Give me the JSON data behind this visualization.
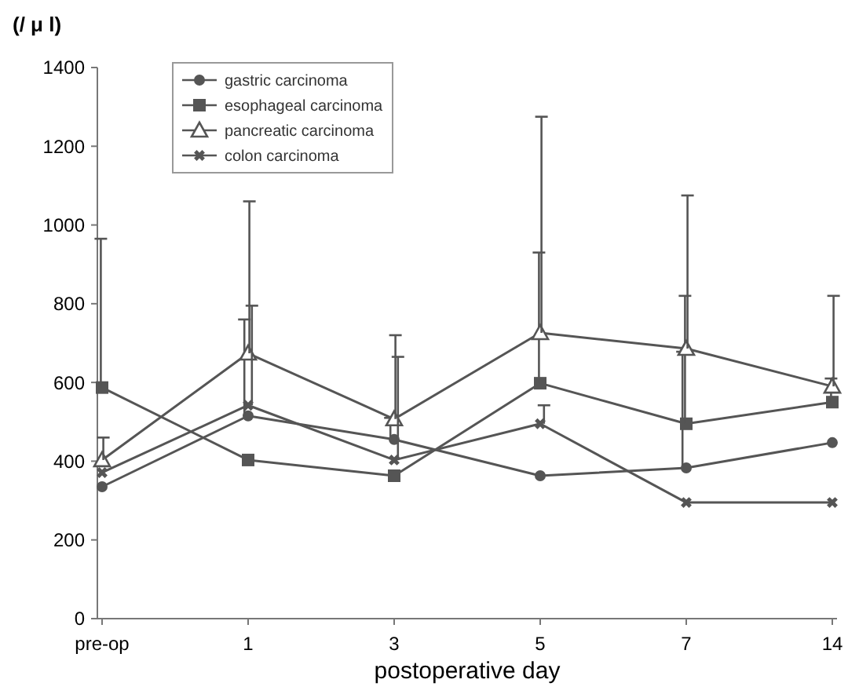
{
  "chart_data": {
    "type": "line",
    "ylabel": "(/ μ l)",
    "xlabel": "postoperative day",
    "categories": [
      "pre-op",
      "1",
      "3",
      "5",
      "7",
      "14"
    ],
    "ylim": [
      0,
      1400
    ],
    "yticks": [
      0,
      200,
      400,
      600,
      800,
      1000,
      1200,
      1400
    ],
    "grid": false,
    "legend": "top left",
    "line_style": "solid",
    "series": [
      {
        "name": "gastric carcinoma",
        "color": "#555555",
        "marker": "circle",
        "values": [
          335,
          515,
          455,
          363,
          383,
          447
        ],
        "errors": [
          null,
          [
            515,
            760
          ],
          [
            455,
            510
          ],
          null,
          [
            383,
            678
          ],
          null
        ]
      },
      {
        "name": "esophageal carcinoma",
        "color": "#555555",
        "marker": "square",
        "values": [
          587,
          403,
          363,
          598,
          495,
          550
        ],
        "errors": [
          [
            587,
            965
          ],
          null,
          null,
          [
            598,
            930
          ],
          [
            495,
            820
          ],
          [
            550,
            610
          ]
        ]
      },
      {
        "name": "pancreatic carcinoma",
        "color": "#555555",
        "marker": "triangle",
        "values": [
          403,
          674,
          507,
          726,
          686,
          590
        ],
        "errors": [
          [
            403,
            460
          ],
          [
            674,
            1060
          ],
          [
            507,
            720
          ],
          [
            726,
            1275
          ],
          [
            686,
            1075
          ],
          [
            590,
            820
          ]
        ]
      },
      {
        "name": "colon carcinoma",
        "color": "#555555",
        "marker": "cross",
        "values": [
          371,
          542,
          403,
          495,
          295,
          295
        ],
        "errors": [
          null,
          [
            542,
            795
          ],
          [
            403,
            665
          ],
          [
            495,
            542
          ],
          null,
          null
        ]
      }
    ]
  }
}
